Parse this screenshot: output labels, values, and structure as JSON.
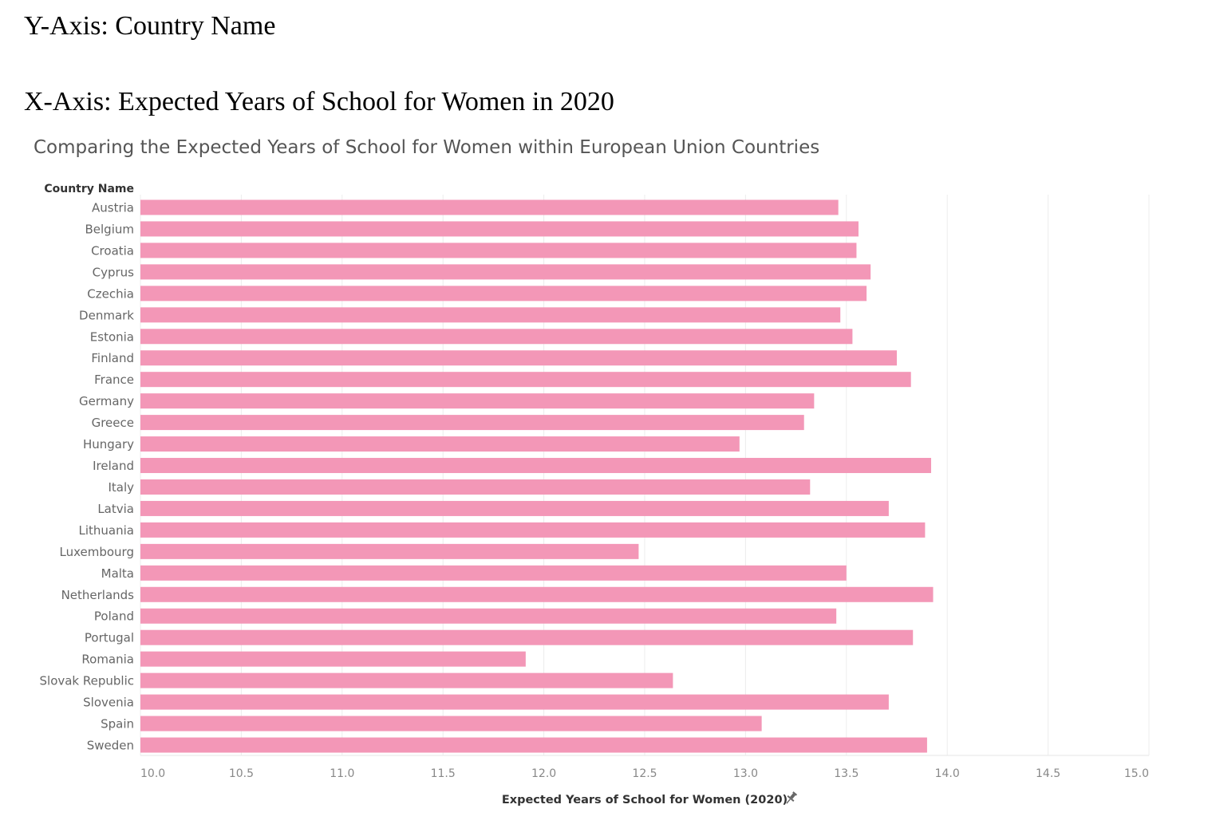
{
  "header": {
    "y_axis_heading": "Y-Axis: Country Name",
    "x_axis_heading": "X-Axis: Expected Years of School for Women in 2020"
  },
  "chart_data": {
    "type": "bar",
    "orientation": "horizontal",
    "title": "Comparing the Expected Years of School for Women within European Union Countries",
    "ylabel": "Country Name",
    "xlabel": "Expected Years of School for Women (2020)",
    "xlim": [
      10.0,
      15.0
    ],
    "x_ticks": [
      "10.0",
      "10.5",
      "11.0",
      "11.5",
      "12.0",
      "12.5",
      "13.0",
      "13.5",
      "14.0",
      "14.5",
      "15.0"
    ],
    "grid": "vertical",
    "bar_color": "#f397b7",
    "categories": [
      "Austria",
      "Belgium",
      "Croatia",
      "Cyprus",
      "Czechia",
      "Denmark",
      "Estonia",
      "Finland",
      "France",
      "Germany",
      "Greece",
      "Hungary",
      "Ireland",
      "Italy",
      "Latvia",
      "Lithuania",
      "Luxembourg",
      "Malta",
      "Netherlands",
      "Poland",
      "Portugal",
      "Romania",
      "Slovak Republic",
      "Slovenia",
      "Spain",
      "Sweden"
    ],
    "values": [
      13.46,
      13.56,
      13.55,
      13.62,
      13.6,
      13.47,
      13.53,
      13.75,
      13.82,
      13.34,
      13.29,
      12.97,
      13.92,
      13.32,
      13.71,
      13.89,
      12.47,
      13.5,
      13.93,
      13.45,
      13.83,
      11.91,
      12.64,
      13.71,
      13.08,
      13.9
    ],
    "pin_icon": "pin-icon"
  }
}
